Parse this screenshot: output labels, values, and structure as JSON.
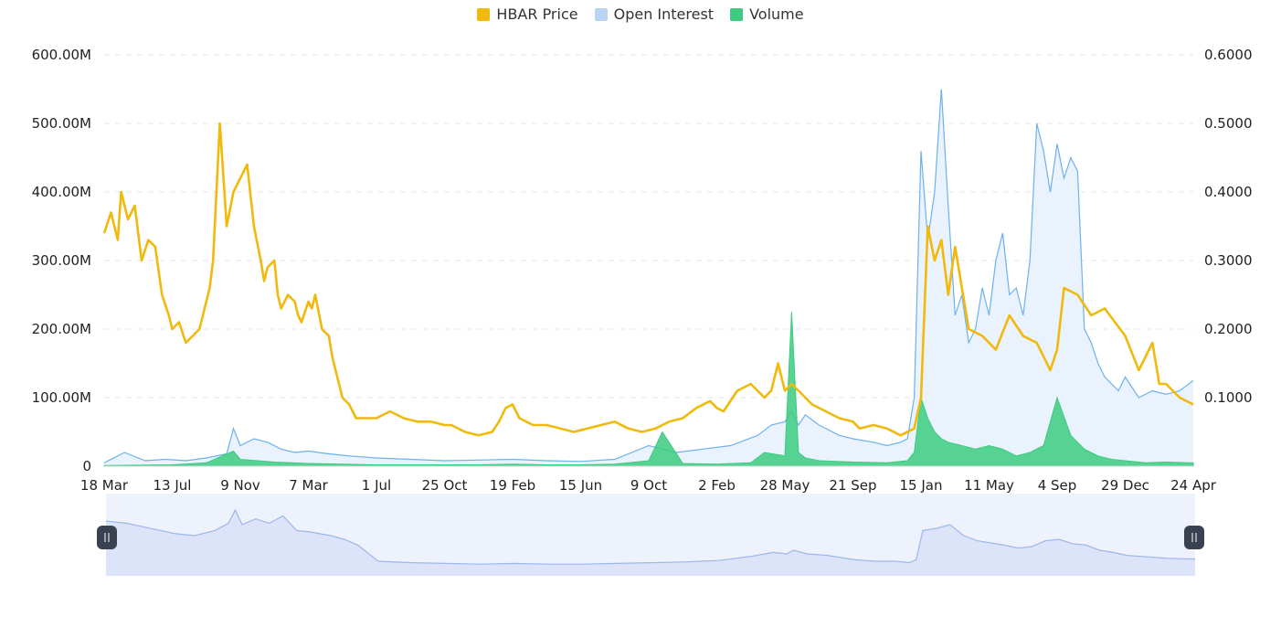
{
  "legend": {
    "items": [
      {
        "label": "HBAR Price",
        "color": "#F0B90B"
      },
      {
        "label": "Open Interest",
        "color": "#B9D3F5"
      },
      {
        "label": "Volume",
        "color": "#3CCB7F"
      }
    ]
  },
  "chart_data": {
    "type": "line",
    "title": "",
    "left_axis": {
      "range": [
        0,
        600000000
      ],
      "ticks": [
        "0",
        "100.00M",
        "200.00M",
        "300.00M",
        "400.00M",
        "500.00M",
        "600.00M"
      ]
    },
    "right_axis": {
      "range": [
        0,
        0.6
      ],
      "ticks": [
        "0.1000",
        "0.2000",
        "0.3000",
        "0.4000",
        "0.5000",
        "0.6000"
      ]
    },
    "x_tick_labels": [
      "18 Mar",
      "13 Jul",
      "9 Nov",
      "7 Mar",
      "1 Jul",
      "25 Oct",
      "19 Feb",
      "15 Jun",
      "9 Oct",
      "2 Feb",
      "28 May",
      "21 Sep",
      "15 Jan",
      "11 May",
      "4 Sep",
      "29 Dec",
      "24 Apr"
    ],
    "x_range_index": [
      0,
      16
    ],
    "grid": true,
    "legend_position": "top",
    "series": [
      {
        "name": "HBAR Price",
        "axis": "right",
        "color": "#F0B90B",
        "x": [
          0,
          0.1,
          0.2,
          0.25,
          0.35,
          0.45,
          0.55,
          0.65,
          0.75,
          0.85,
          0.95,
          1,
          1.1,
          1.2,
          1.3,
          1.4,
          1.45,
          1.5,
          1.55,
          1.6,
          1.7,
          1.8,
          1.9,
          2,
          2.1,
          2.2,
          2.3,
          2.35,
          2.4,
          2.5,
          2.55,
          2.6,
          2.7,
          2.8,
          2.85,
          2.9,
          3,
          3.05,
          3.1,
          3.2,
          3.3,
          3.35,
          3.4,
          3.5,
          3.6,
          3.7,
          3.8,
          3.9,
          4,
          4.2,
          4.4,
          4.6,
          4.8,
          5,
          5.1,
          5.3,
          5.5,
          5.7,
          5.8,
          5.9,
          6,
          6.1,
          6.3,
          6.5,
          6.7,
          6.9,
          7.1,
          7.3,
          7.5,
          7.7,
          7.9,
          8.1,
          8.3,
          8.5,
          8.7,
          8.9,
          9,
          9.1,
          9.3,
          9.5,
          9.7,
          9.8,
          9.9,
          10,
          10.1,
          10.2,
          10.4,
          10.6,
          10.8,
          11,
          11.1,
          11.3,
          11.5,
          11.7,
          11.9,
          12,
          12.1,
          12.2,
          12.3,
          12.4,
          12.5,
          12.7,
          12.9,
          13.1,
          13.3,
          13.5,
          13.7,
          13.9,
          14,
          14.1,
          14.3,
          14.5,
          14.7,
          15,
          15.2,
          15.4,
          15.5,
          15.6,
          15.8,
          16
        ],
        "y": [
          0.34,
          0.37,
          0.33,
          0.4,
          0.36,
          0.38,
          0.3,
          0.33,
          0.32,
          0.25,
          0.22,
          0.2,
          0.21,
          0.18,
          0.19,
          0.2,
          0.22,
          0.24,
          0.26,
          0.3,
          0.5,
          0.35,
          0.4,
          0.42,
          0.44,
          0.35,
          0.3,
          0.27,
          0.29,
          0.3,
          0.25,
          0.23,
          0.25,
          0.24,
          0.22,
          0.21,
          0.24,
          0.23,
          0.25,
          0.2,
          0.19,
          0.16,
          0.14,
          0.1,
          0.09,
          0.07,
          0.07,
          0.07,
          0.07,
          0.08,
          0.07,
          0.065,
          0.065,
          0.06,
          0.06,
          0.05,
          0.045,
          0.05,
          0.065,
          0.085,
          0.09,
          0.07,
          0.06,
          0.06,
          0.055,
          0.05,
          0.055,
          0.06,
          0.065,
          0.055,
          0.05,
          0.055,
          0.065,
          0.07,
          0.085,
          0.095,
          0.085,
          0.08,
          0.11,
          0.12,
          0.1,
          0.11,
          0.15,
          0.11,
          0.12,
          0.11,
          0.09,
          0.08,
          0.07,
          0.065,
          0.055,
          0.06,
          0.055,
          0.045,
          0.055,
          0.1,
          0.35,
          0.3,
          0.33,
          0.25,
          0.32,
          0.2,
          0.19,
          0.17,
          0.22,
          0.19,
          0.18,
          0.14,
          0.17,
          0.26,
          0.25,
          0.22,
          0.23,
          0.19,
          0.14,
          0.18,
          0.12,
          0.12,
          0.1,
          0.09
        ]
      },
      {
        "name": "Open Interest",
        "axis": "left",
        "color": "#6CB1F0",
        "fill": "#EAF3FD",
        "x": [
          0,
          0.3,
          0.6,
          0.9,
          1.2,
          1.5,
          1.8,
          1.9,
          2,
          2.2,
          2.4,
          2.6,
          2.8,
          3,
          3.3,
          3.6,
          4,
          4.5,
          5,
          5.5,
          6,
          6.5,
          7,
          7.5,
          8,
          8.4,
          8.8,
          9.2,
          9.6,
          9.8,
          10,
          10.1,
          10.2,
          10.3,
          10.5,
          10.8,
          11,
          11.3,
          11.5,
          11.7,
          11.8,
          11.9,
          12,
          12.1,
          12.2,
          12.3,
          12.4,
          12.5,
          12.6,
          12.7,
          12.8,
          12.9,
          13,
          13.1,
          13.2,
          13.3,
          13.4,
          13.5,
          13.6,
          13.7,
          13.8,
          13.9,
          14,
          14.1,
          14.2,
          14.3,
          14.4,
          14.5,
          14.6,
          14.7,
          14.8,
          14.9,
          15,
          15.2,
          15.4,
          15.6,
          15.8,
          16
        ],
        "y": [
          5000000,
          20000000,
          8000000,
          10000000,
          8000000,
          12000000,
          18000000,
          55000000,
          30000000,
          40000000,
          35000000,
          25000000,
          20000000,
          22000000,
          18000000,
          15000000,
          12000000,
          10000000,
          8000000,
          9000000,
          10000000,
          8000000,
          7000000,
          10000000,
          30000000,
          20000000,
          25000000,
          30000000,
          45000000,
          60000000,
          65000000,
          80000000,
          60000000,
          75000000,
          60000000,
          45000000,
          40000000,
          35000000,
          30000000,
          35000000,
          40000000,
          100000000,
          460000000,
          330000000,
          400000000,
          550000000,
          380000000,
          220000000,
          250000000,
          180000000,
          200000000,
          260000000,
          220000000,
          300000000,
          340000000,
          250000000,
          260000000,
          220000000,
          300000000,
          500000000,
          460000000,
          400000000,
          470000000,
          420000000,
          450000000,
          430000000,
          200000000,
          180000000,
          150000000,
          130000000,
          120000000,
          110000000,
          130000000,
          100000000,
          110000000,
          105000000,
          110000000,
          125000000
        ]
      },
      {
        "name": "Volume",
        "axis": "left",
        "color": "#3CCB7F",
        "x": [
          0,
          1,
          1.5,
          1.9,
          2,
          2.5,
          3,
          3.5,
          4,
          4.5,
          5,
          5.5,
          6,
          6.5,
          7,
          7.5,
          8,
          8.2,
          8.5,
          9,
          9.5,
          9.7,
          10,
          10.1,
          10.2,
          10.3,
          10.5,
          11,
          11.5,
          11.8,
          11.9,
          12,
          12.1,
          12.2,
          12.3,
          12.4,
          12.6,
          12.8,
          13,
          13.2,
          13.4,
          13.6,
          13.8,
          14,
          14.2,
          14.4,
          14.6,
          14.8,
          15,
          15.3,
          15.6,
          16
        ],
        "y": [
          1000000,
          2000000,
          5000000,
          22000000,
          10000000,
          6000000,
          4000000,
          3000000,
          2000000,
          2000000,
          2000000,
          2000000,
          3000000,
          2000000,
          2000000,
          3000000,
          8000000,
          50000000,
          4000000,
          3000000,
          5000000,
          20000000,
          15000000,
          225000000,
          20000000,
          12000000,
          8000000,
          6000000,
          5000000,
          8000000,
          20000000,
          100000000,
          70000000,
          50000000,
          40000000,
          35000000,
          30000000,
          25000000,
          30000000,
          25000000,
          15000000,
          20000000,
          30000000,
          100000000,
          45000000,
          25000000,
          15000000,
          10000000,
          8000000,
          5000000,
          6000000,
          5000000
        ]
      }
    ]
  },
  "navigator": {
    "x": [
      0,
      0.3,
      0.6,
      1,
      1.3,
      1.6,
      1.8,
      1.9,
      2,
      2.2,
      2.4,
      2.6,
      2.8,
      3,
      3.3,
      3.5,
      3.7,
      4,
      4.5,
      5,
      5.5,
      6,
      6.5,
      7,
      7.5,
      8,
      8.5,
      9,
      9.5,
      9.8,
      10,
      10.1,
      10.3,
      10.6,
      11,
      11.3,
      11.6,
      11.8,
      11.9,
      12,
      12.2,
      12.4,
      12.6,
      12.8,
      13,
      13.2,
      13.4,
      13.6,
      13.8,
      14,
      14.2,
      14.4,
      14.6,
      14.8,
      15,
      15.3,
      15.6,
      16
    ],
    "y": [
      0.75,
      0.72,
      0.66,
      0.58,
      0.55,
      0.62,
      0.72,
      0.9,
      0.7,
      0.78,
      0.72,
      0.82,
      0.62,
      0.6,
      0.55,
      0.5,
      0.42,
      0.2,
      0.18,
      0.17,
      0.16,
      0.17,
      0.16,
      0.16,
      0.17,
      0.18,
      0.19,
      0.21,
      0.27,
      0.32,
      0.3,
      0.35,
      0.3,
      0.28,
      0.22,
      0.2,
      0.2,
      0.18,
      0.22,
      0.62,
      0.65,
      0.7,
      0.55,
      0.48,
      0.45,
      0.42,
      0.38,
      0.4,
      0.48,
      0.5,
      0.44,
      0.42,
      0.35,
      0.32,
      0.28,
      0.26,
      0.24,
      0.23
    ]
  }
}
